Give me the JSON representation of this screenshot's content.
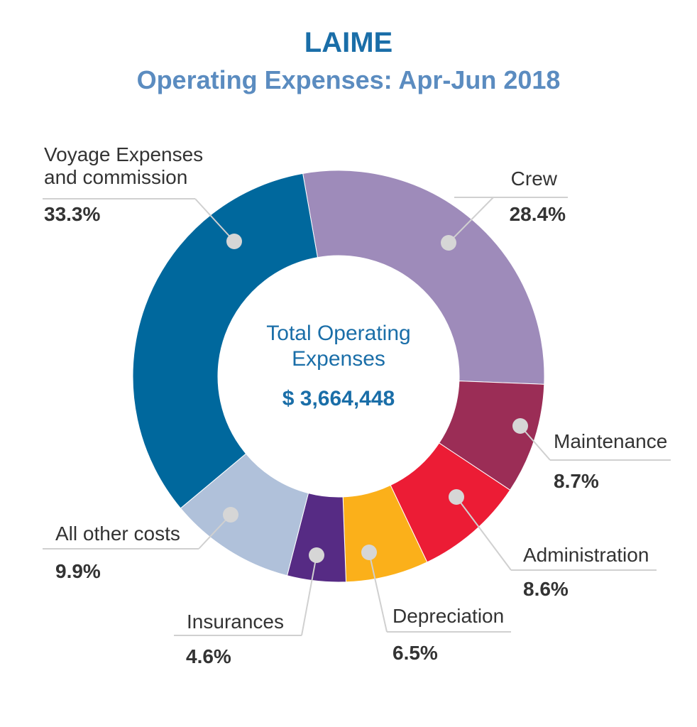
{
  "chart_data": {
    "type": "donut",
    "title": "LAIME",
    "subtitle": "Operating Expenses: Apr-Jun 2018",
    "center_label": "Total Operating Expenses",
    "total": {
      "value": 3664448,
      "label": "$ 3,664,448"
    },
    "categories": [
      "Crew",
      "Maintenance",
      "Administration",
      "Depreciation",
      "Insurances",
      "All other costs",
      "Voyage Expenses and commission"
    ],
    "values": [
      28.4,
      8.7,
      8.6,
      6.5,
      4.6,
      9.9,
      33.3
    ],
    "value_labels": [
      "28.4%",
      "8.7%",
      "8.6%",
      "6.5%",
      "4.6%",
      "9.9%",
      "33.3%"
    ],
    "colors": [
      "#9e8bba",
      "#9b2d56",
      "#ec1c35",
      "#fbb01a",
      "#562b84",
      "#b0c1da",
      "#00689d"
    ]
  }
}
